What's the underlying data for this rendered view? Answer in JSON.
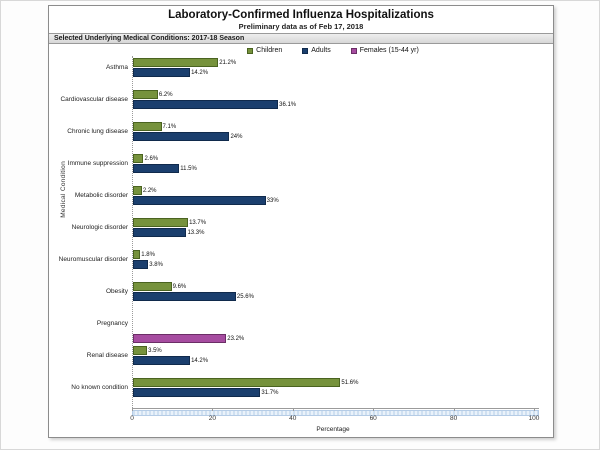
{
  "chart_data": {
    "type": "bar",
    "orientation": "horizontal",
    "title": "Laboratory-Confirmed Influenza Hospitalizations",
    "subtitle": "Preliminary data as of Feb 17, 2018",
    "panel_header": "Selected Underlying Medical Conditions: 2017-18 Season",
    "ylabel": "Medical Condition",
    "xlabel": "Percentage",
    "xlim": [
      0,
      100
    ],
    "xticks": [
      0,
      20,
      40,
      60,
      80,
      100
    ],
    "grid": false,
    "legend_position": "top-center",
    "legend": [
      {
        "label": "Children",
        "color": "#76923C",
        "border": "#4a6320"
      },
      {
        "label": "Adults",
        "color": "#1B3F6E",
        "border": "#102a4c"
      },
      {
        "label": "Females (15-44 yr)",
        "color": "#A64CA0",
        "border": "#6b2e66"
      }
    ],
    "groups": [
      {
        "category": "Asthma",
        "bars": [
          {
            "series": "Children",
            "value": 21.2,
            "label": "21.2%"
          },
          {
            "series": "Adults",
            "value": 14.2,
            "label": "14.2%"
          }
        ]
      },
      {
        "category": "Cardiovascular disease",
        "bars": [
          {
            "series": "Children",
            "value": 6.2,
            "label": "6.2%"
          },
          {
            "series": "Adults",
            "value": 36.1,
            "label": "36.1%"
          }
        ]
      },
      {
        "category": "Chronic lung disease",
        "bars": [
          {
            "series": "Children",
            "value": 7.1,
            "label": "7.1%"
          },
          {
            "series": "Adults",
            "value": 24,
            "label": "24%"
          }
        ]
      },
      {
        "category": "Immune suppression",
        "bars": [
          {
            "series": "Children",
            "value": 2.6,
            "label": "2.6%"
          },
          {
            "series": "Adults",
            "value": 11.5,
            "label": "11.5%"
          }
        ]
      },
      {
        "category": "Metabolic disorder",
        "bars": [
          {
            "series": "Children",
            "value": 2.2,
            "label": "2.2%"
          },
          {
            "series": "Adults",
            "value": 33,
            "label": "33%"
          }
        ]
      },
      {
        "category": "Neurologic disorder",
        "bars": [
          {
            "series": "Children",
            "value": 13.7,
            "label": "13.7%"
          },
          {
            "series": "Adults",
            "value": 13.3,
            "label": "13.3%"
          }
        ]
      },
      {
        "category": "Neuromuscular disorder",
        "bars": [
          {
            "series": "Children",
            "value": 1.8,
            "label": "1.8%"
          },
          {
            "series": "Adults",
            "value": 3.8,
            "label": "3.8%"
          }
        ]
      },
      {
        "category": "Obesity",
        "bars": [
          {
            "series": "Children",
            "value": 9.6,
            "label": "9.6%"
          },
          {
            "series": "Adults",
            "value": 25.6,
            "label": "25.6%"
          }
        ]
      },
      {
        "category": "Pregnancy",
        "bars": [
          {
            "series": "Females (15-44 yr)",
            "value": 23.2,
            "label": "23.2%"
          }
        ]
      },
      {
        "category": "Renal disease",
        "bars": [
          {
            "series": "Children",
            "value": 3.5,
            "label": "3.5%"
          },
          {
            "series": "Adults",
            "value": 14.2,
            "label": "14.2%"
          }
        ]
      },
      {
        "category": "No known condition",
        "bars": [
          {
            "series": "Children",
            "value": 51.6,
            "label": "51.6%"
          },
          {
            "series": "Adults",
            "value": 31.7,
            "label": "31.7%"
          }
        ]
      }
    ]
  }
}
